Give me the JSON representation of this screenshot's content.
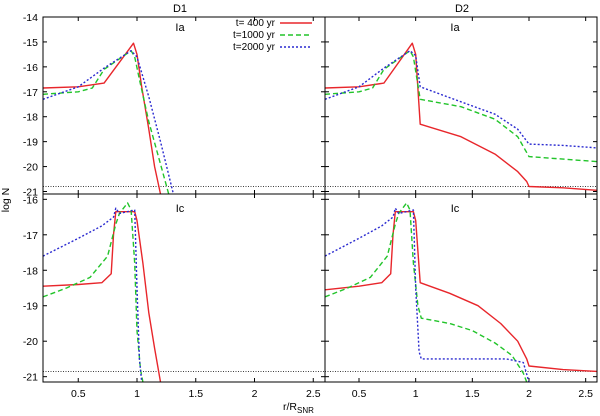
{
  "chart_data": {
    "type": "line",
    "xlabel_main": "r/R",
    "xlabel_sub": "SNR",
    "ylabel": "log N",
    "columns": [
      "D1",
      "D2"
    ],
    "xlim": [
      0.2,
      2.6
    ],
    "xticks": [
      "0.5",
      "1",
      "1.5",
      "2",
      "2.5"
    ],
    "xtick_values": [
      0.5,
      1,
      1.5,
      2,
      2.5
    ],
    "legend": [
      "t=  400 yr",
      "t=1000 yr",
      "t=2000 yr"
    ],
    "series_colors": [
      "#e8262b",
      "#22c42a",
      "#2a2ad0"
    ],
    "threshold_y": {
      "top": -20.8,
      "bottom": -20.85
    },
    "rows": [
      {
        "ylim": [
          -21.1,
          -14
        ],
        "yticks": [
          -14,
          -15,
          -16,
          -17,
          -18,
          -19,
          -20,
          -21
        ],
        "ytick_labels": [
          "-14",
          "-15",
          "-16",
          "-17",
          "-18",
          "-19",
          "-20",
          "-21"
        ],
        "panels": [
          {
            "column": "D1",
            "tag": "Ia",
            "series": [
              {
                "name": "t=  400 yr",
                "x": [
                  0.2,
                  0.5,
                  0.72,
                  0.97,
                  1.0,
                  1.04,
                  1.1,
                  1.15,
                  1.2
                ],
                "y": [
                  -16.85,
                  -16.8,
                  -16.65,
                  -15.05,
                  -15.5,
                  -16.8,
                  -18.5,
                  -20.0,
                  -21.1
                ]
              },
              {
                "name": "t=1000 yr",
                "x": [
                  0.2,
                  0.5,
                  0.62,
                  0.72,
                  0.95,
                  0.98,
                  1.02,
                  1.1,
                  1.2,
                  1.27
                ],
                "y": [
                  -17.1,
                  -17.0,
                  -16.85,
                  -16.1,
                  -15.35,
                  -15.6,
                  -16.5,
                  -18.2,
                  -19.9,
                  -21.1
                ]
              },
              {
                "name": "t=2000 yr",
                "x": [
                  0.2,
                  0.5,
                  0.72,
                  0.95,
                  1.0,
                  1.1,
                  1.2,
                  1.31
                ],
                "y": [
                  -17.3,
                  -16.8,
                  -16.05,
                  -15.35,
                  -15.6,
                  -17.2,
                  -19.0,
                  -21.1
                ]
              }
            ]
          },
          {
            "column": "D2",
            "tag": "Ia",
            "series": [
              {
                "name": "t=  400 yr",
                "x": [
                  0.2,
                  0.5,
                  0.72,
                  0.97,
                  1.0,
                  1.04,
                  1.4,
                  1.7,
                  1.9,
                  1.98,
                  2.0,
                  2.3,
                  2.6
                ],
                "y": [
                  -16.85,
                  -16.8,
                  -16.65,
                  -15.05,
                  -15.5,
                  -18.3,
                  -18.8,
                  -19.5,
                  -20.2,
                  -20.6,
                  -20.8,
                  -20.85,
                  -20.95
                ]
              },
              {
                "name": "t=1000 yr",
                "x": [
                  0.2,
                  0.5,
                  0.62,
                  0.72,
                  0.95,
                  0.98,
                  1.04,
                  1.4,
                  1.7,
                  1.9,
                  2.0,
                  2.3,
                  2.6
                ],
                "y": [
                  -17.1,
                  -17.0,
                  -16.85,
                  -16.1,
                  -15.35,
                  -15.6,
                  -17.3,
                  -17.6,
                  -18.1,
                  -18.8,
                  -19.6,
                  -19.7,
                  -19.8
                ]
              },
              {
                "name": "t=2000 yr",
                "x": [
                  0.2,
                  0.5,
                  0.72,
                  0.95,
                  1.0,
                  1.04,
                  1.4,
                  1.7,
                  1.9,
                  2.0,
                  2.3,
                  2.6
                ],
                "y": [
                  -17.3,
                  -16.8,
                  -16.05,
                  -15.35,
                  -15.55,
                  -16.8,
                  -17.4,
                  -17.9,
                  -18.5,
                  -19.1,
                  -19.15,
                  -19.25
                ]
              }
            ]
          }
        ]
      },
      {
        "ylim": [
          -21.15,
          -15.85
        ],
        "yticks": [
          -16,
          -17,
          -18,
          -19,
          -20,
          -21
        ],
        "ytick_labels": [
          "-16",
          "-17",
          "-18",
          "-19",
          "-20",
          "-21"
        ],
        "panels": [
          {
            "column": "D1",
            "tag": "Ic",
            "series": [
              {
                "name": "t=  400 yr",
                "x": [
                  0.2,
                  0.5,
                  0.7,
                  0.78,
                  0.8,
                  0.82,
                  0.98,
                  1.0,
                  1.05,
                  1.1,
                  1.15,
                  1.2
                ],
                "y": [
                  -18.45,
                  -18.4,
                  -18.35,
                  -18.1,
                  -17.0,
                  -16.35,
                  -16.35,
                  -16.6,
                  -17.8,
                  -19.2,
                  -20.2,
                  -21.15
                ]
              },
              {
                "name": "t=1000 yr",
                "x": [
                  0.2,
                  0.4,
                  0.6,
                  0.75,
                  0.82,
                  0.85,
                  0.92,
                  0.95,
                  0.98,
                  1.0,
                  1.03,
                  1.05
                ],
                "y": [
                  -18.75,
                  -18.5,
                  -18.2,
                  -17.6,
                  -16.7,
                  -16.4,
                  -16.1,
                  -16.3,
                  -17.8,
                  -19.7,
                  -20.8,
                  -21.15
                ]
              },
              {
                "name": "t=2000 yr",
                "x": [
                  0.2,
                  0.5,
                  0.7,
                  0.8,
                  0.82,
                  0.85,
                  0.98,
                  1.0,
                  1.02,
                  1.04
                ],
                "y": [
                  -17.6,
                  -17.1,
                  -16.75,
                  -16.5,
                  -16.25,
                  -16.4,
                  -16.3,
                  -18.5,
                  -20.5,
                  -21.15
                ]
              }
            ]
          },
          {
            "column": "D2",
            "tag": "Ic",
            "series": [
              {
                "name": "t=  400 yr",
                "x": [
                  0.2,
                  0.5,
                  0.7,
                  0.78,
                  0.8,
                  0.82,
                  0.98,
                  1.0,
                  1.04,
                  1.3,
                  1.55,
                  1.75,
                  1.9,
                  1.98,
                  2.0,
                  2.3,
                  2.6
                ],
                "y": [
                  -18.55,
                  -18.45,
                  -18.35,
                  -18.1,
                  -17.0,
                  -16.35,
                  -16.35,
                  -16.6,
                  -18.35,
                  -18.65,
                  -19.0,
                  -19.5,
                  -20.0,
                  -20.5,
                  -20.7,
                  -20.8,
                  -20.85
                ]
              },
              {
                "name": "t=1000 yr",
                "x": [
                  0.2,
                  0.4,
                  0.6,
                  0.75,
                  0.82,
                  0.85,
                  0.92,
                  0.95,
                  0.98,
                  1.02,
                  1.05,
                  1.3,
                  1.5,
                  1.7,
                  1.85,
                  1.95,
                  1.98
                ],
                "y": [
                  -18.75,
                  -18.5,
                  -18.2,
                  -17.6,
                  -16.7,
                  -16.4,
                  -16.1,
                  -16.3,
                  -17.8,
                  -19.0,
                  -19.35,
                  -19.5,
                  -19.7,
                  -20.05,
                  -20.4,
                  -20.9,
                  -21.15
                ]
              },
              {
                "name": "t=2000 yr",
                "x": [
                  0.2,
                  0.5,
                  0.7,
                  0.8,
                  0.82,
                  0.85,
                  0.98,
                  1.0,
                  1.03,
                  1.05,
                  1.5,
                  1.8,
                  1.95,
                  2.0
                ],
                "y": [
                  -17.6,
                  -17.1,
                  -16.75,
                  -16.5,
                  -16.25,
                  -16.4,
                  -16.3,
                  -18.5,
                  -20.3,
                  -20.5,
                  -20.5,
                  -20.5,
                  -20.6,
                  -21.15
                ]
              }
            ]
          }
        ]
      }
    ]
  }
}
